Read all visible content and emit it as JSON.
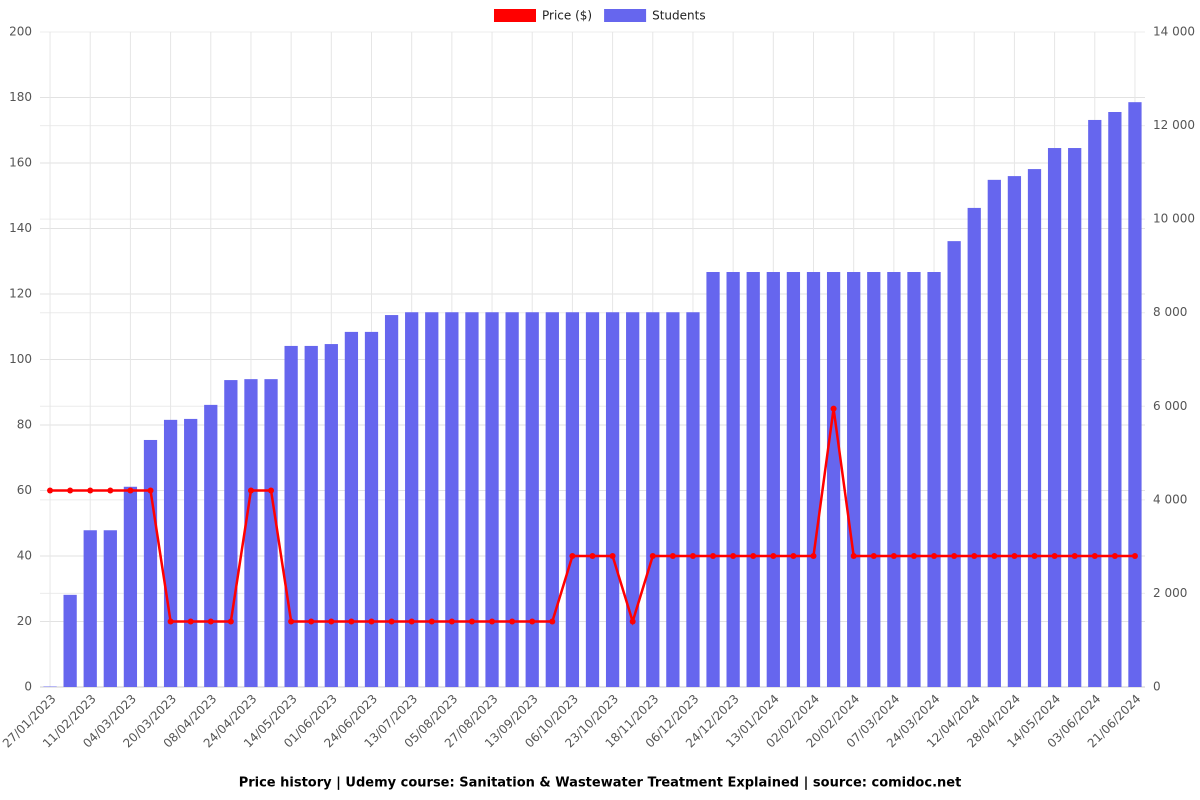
{
  "chart_data": {
    "type": "bar",
    "title": "Price history | Udemy course: Sanitation & Wastewater Treatment Explained | source: comidoc.net",
    "categories": [
      "27/01/2023",
      null,
      "11/02/2023",
      null,
      "04/03/2023",
      null,
      "20/03/2023",
      null,
      "08/04/2023",
      null,
      "24/04/2023",
      null,
      "14/05/2023",
      null,
      "01/06/2023",
      null,
      "24/06/2023",
      null,
      "13/07/2023",
      null,
      "05/08/2023",
      null,
      "27/08/2023",
      null,
      "13/09/2023",
      null,
      "06/10/2023",
      null,
      "23/10/2023",
      null,
      "18/11/2023",
      null,
      "06/12/2023",
      null,
      "24/12/2023",
      null,
      "13/01/2024",
      null,
      "02/02/2024",
      null,
      "20/02/2024",
      null,
      "07/03/2024",
      null,
      "24/03/2024",
      null,
      "12/04/2024",
      null,
      "28/04/2024",
      null,
      "14/05/2024",
      null,
      "03/06/2024",
      null,
      "21/06/2024"
    ],
    "series": [
      {
        "name": "Price ($)",
        "color": "#ff0000",
        "type": "line",
        "values": [
          60,
          60,
          60,
          60,
          60,
          60,
          20,
          20,
          20,
          20,
          60,
          60,
          20,
          20,
          20,
          20,
          20,
          20,
          20,
          20,
          20,
          20,
          20,
          20,
          20,
          20,
          40,
          40,
          40,
          20,
          40,
          40,
          40,
          40,
          40,
          40,
          40,
          40,
          40,
          85,
          40,
          40,
          40,
          40,
          40,
          40,
          40,
          40,
          40,
          40,
          40,
          40,
          40,
          40,
          40
        ]
      },
      {
        "name": "Students",
        "color": "#6666ee",
        "type": "bar",
        "axis": "y2",
        "values": [
          10,
          1970,
          3350,
          3350,
          4280,
          5280,
          5710,
          5730,
          6030,
          6560,
          6580,
          6580,
          7290,
          7290,
          7330,
          7590,
          7590,
          7950,
          8010,
          8010,
          8010,
          8010,
          8010,
          8010,
          8010,
          8010,
          8010,
          8010,
          8010,
          8010,
          8010,
          8010,
          8010,
          8870,
          8870,
          8870,
          8870,
          8870,
          8870,
          8870,
          8870,
          8870,
          8870,
          8870,
          8870,
          9530,
          10240,
          10840,
          10920,
          11070,
          11520,
          11520,
          12120,
          12290,
          12500
        ]
      }
    ],
    "ylim": [
      0,
      200
    ],
    "yticks": [
      0,
      20,
      40,
      60,
      80,
      100,
      120,
      140,
      160,
      180,
      200
    ],
    "y2lim": [
      0,
      14000
    ],
    "y2ticks": [
      0,
      {
        "value": 2000,
        "label": "2 000"
      },
      {
        "value": 4000,
        "label": "4 000"
      },
      {
        "value": 6000,
        "label": "6 000"
      },
      {
        "value": 8000,
        "label": "8 000"
      },
      {
        "value": 10000,
        "label": "10 000"
      },
      {
        "value": 12000,
        "label": "12 000"
      },
      {
        "value": 14000,
        "label": "14 000"
      }
    ],
    "grid": true,
    "legend": "top"
  }
}
